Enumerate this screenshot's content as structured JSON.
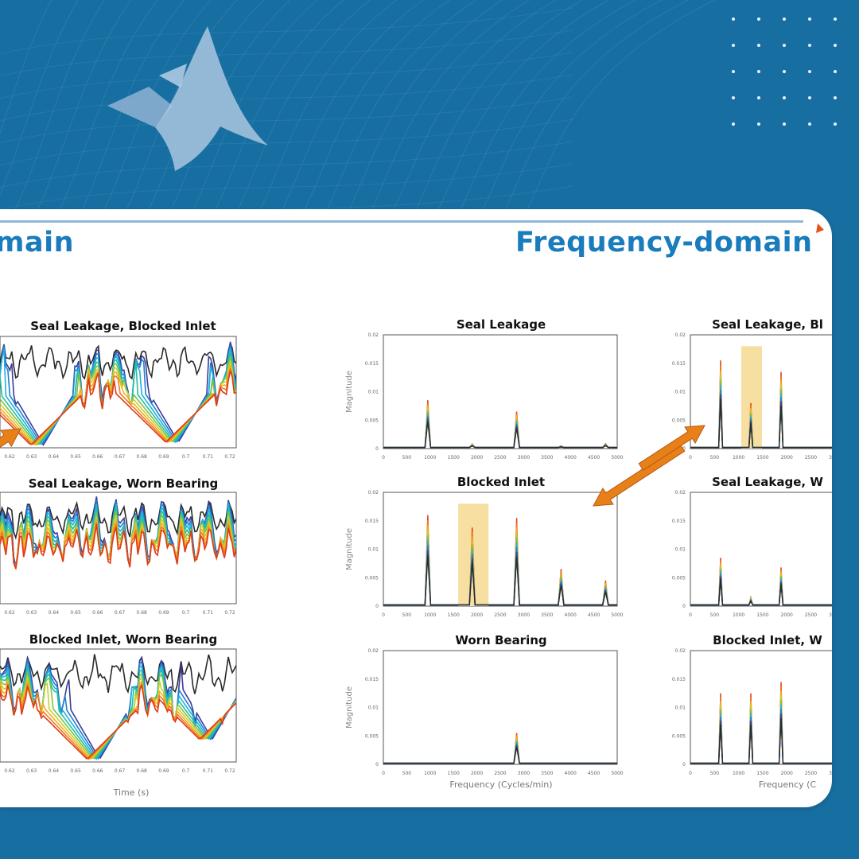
{
  "slide": {
    "title_left": "main",
    "title_right": "Frequency-domain"
  },
  "colors": {
    "background": "#176ea0",
    "title": "#1a7cbc",
    "arrow": "#e8801a",
    "highlight": "#f7dfa2"
  },
  "icons": [
    "matlab-logo",
    "dot-grid"
  ],
  "chart_data": [
    {
      "type": "line",
      "panel": "time-1",
      "title": "Seal Leakage, Blocked Inlet",
      "xlabel": "",
      "ylabel": "",
      "xticks": [
        "0.62",
        "0.63",
        "0.64",
        "0.65",
        "0.66",
        "0.67",
        "0.68",
        "0.69",
        "0.7",
        "0.71",
        "0.72"
      ],
      "xlim": [
        0.62,
        0.725
      ],
      "ylim": [
        -1,
        1
      ],
      "grid": false,
      "dips": [
        [
          0.64,
          -0.95
        ],
        [
          0.7,
          -0.9
        ]
      ],
      "series_count": 10
    },
    {
      "type": "line",
      "panel": "time-2",
      "title": "Seal Leakage, Worn Bearing",
      "xlabel": "",
      "ylabel": "",
      "xticks": [
        "0.62",
        "0.63",
        "0.64",
        "0.65",
        "0.66",
        "0.67",
        "0.68",
        "0.69",
        "0.7",
        "0.71",
        "0.72"
      ],
      "xlim": [
        0.62,
        0.725
      ],
      "ylim": [
        -1,
        1
      ],
      "grid": false,
      "dips": [],
      "series_count": 10
    },
    {
      "type": "line",
      "panel": "time-3",
      "title": "Blocked Inlet, Worn Bearing",
      "xlabel": "Time (s)",
      "ylabel": "",
      "xticks": [
        "0.62",
        "0.63",
        "0.64",
        "0.65",
        "0.66",
        "0.67",
        "0.68",
        "0.69",
        "0.7",
        "0.71",
        "0.72"
      ],
      "xlim": [
        0.62,
        0.725
      ],
      "ylim": [
        -1,
        1
      ],
      "grid": false,
      "dips": [
        [
          0.665,
          -0.95
        ],
        [
          0.715,
          -0.6
        ]
      ],
      "series_count": 10
    },
    {
      "type": "line",
      "panel": "freq-1",
      "title": "Seal Leakage",
      "xlabel": "",
      "ylabel": "Magnitude",
      "xticks": [
        "0",
        "500",
        "1000",
        "1500",
        "2000",
        "2500",
        "3000",
        "3500",
        "4000",
        "4500",
        "5000"
      ],
      "yticks": [
        "0",
        "0.005",
        "0.01",
        "0.015",
        "0.02"
      ],
      "xlim": [
        0,
        5000
      ],
      "ylim": [
        0,
        0.02
      ],
      "peaks": [
        [
          950,
          0.0085
        ],
        [
          1900,
          0.0008
        ],
        [
          2850,
          0.0065
        ],
        [
          3800,
          0.0005
        ],
        [
          4750,
          0.0009
        ]
      ],
      "highlight": null
    },
    {
      "type": "line",
      "panel": "freq-2",
      "title": "Blocked Inlet",
      "xlabel": "",
      "ylabel": "Magnitude",
      "xticks": [
        "0",
        "500",
        "1000",
        "1500",
        "2000",
        "2500",
        "3000",
        "3500",
        "4000",
        "4500",
        "5000"
      ],
      "yticks": [
        "0",
        "0.005",
        "0.01",
        "0.015",
        "0.02"
      ],
      "xlim": [
        0,
        5000
      ],
      "ylim": [
        0,
        0.02
      ],
      "peaks": [
        [
          950,
          0.016
        ],
        [
          1900,
          0.0138
        ],
        [
          2850,
          0.0155
        ],
        [
          3800,
          0.0065
        ],
        [
          4750,
          0.0045
        ]
      ],
      "highlight": [
        1600,
        2250
      ]
    },
    {
      "type": "line",
      "panel": "freq-3",
      "title": "Worn Bearing",
      "xlabel": "Frequency (Cycles/min)",
      "ylabel": "Magnitude",
      "xticks": [
        "0",
        "500",
        "1000",
        "1500",
        "2000",
        "2500",
        "3000",
        "3500",
        "4000",
        "4500",
        "5000"
      ],
      "yticks": [
        "0",
        "0.005",
        "0.01",
        "0.015",
        "0.02"
      ],
      "xlim": [
        0,
        5000
      ],
      "ylim": [
        0,
        0.02
      ],
      "peaks": [
        [
          2850,
          0.0055
        ]
      ],
      "highlight": null
    },
    {
      "type": "line",
      "panel": "freq-4",
      "title": "Seal Leakage, Bl",
      "xlabel": "",
      "ylabel": "",
      "xticks": [
        "0",
        "500",
        "1000",
        "1500",
        "2000",
        "2500",
        "3000"
      ],
      "yticks": [
        "0",
        "0.005",
        "0.01",
        "0.015",
        "0.02"
      ],
      "xlim": [
        0,
        5000
      ],
      "ylim": [
        0,
        0.02
      ],
      "peaks": [
        [
          950,
          0.0155
        ],
        [
          1900,
          0.008
        ],
        [
          2850,
          0.0135
        ]
      ],
      "highlight": [
        1600,
        2250
      ]
    },
    {
      "type": "line",
      "panel": "freq-5",
      "title": "Seal Leakage, W",
      "xlabel": "",
      "ylabel": "",
      "xticks": [
        "0",
        "500",
        "1000",
        "1500",
        "2000",
        "2500",
        "3000"
      ],
      "yticks": [
        "0",
        "0.005",
        "0.01",
        "0.015",
        "0.02"
      ],
      "xlim": [
        0,
        5000
      ],
      "ylim": [
        0,
        0.02
      ],
      "peaks": [
        [
          950,
          0.0085
        ],
        [
          1900,
          0.0015
        ],
        [
          2850,
          0.0068
        ]
      ],
      "highlight": null
    },
    {
      "type": "line",
      "panel": "freq-6",
      "title": "Blocked Inlet, W",
      "xlabel": "Frequency (C",
      "ylabel": "",
      "xticks": [
        "0",
        "500",
        "1000",
        "1500",
        "2000",
        "2500",
        "3000"
      ],
      "yticks": [
        "0",
        "0.005",
        "0.01",
        "0.015",
        "0.02"
      ],
      "xlim": [
        0,
        5000
      ],
      "ylim": [
        0,
        0.02
      ],
      "peaks": [
        [
          950,
          0.0125
        ],
        [
          1900,
          0.0125
        ],
        [
          2850,
          0.0145
        ]
      ],
      "highlight": null
    }
  ]
}
